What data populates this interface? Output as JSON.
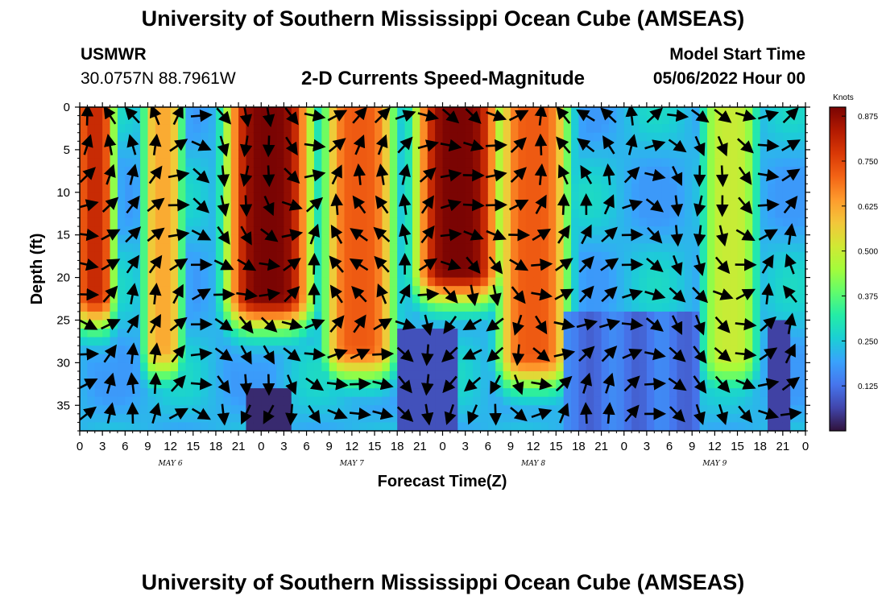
{
  "header": {
    "title": "University of Southern Mississippi Ocean Cube (AMSEAS)",
    "station_id": "USMWR",
    "station_coords": "30.0757N  88.7961W",
    "subtitle": "2-D Currents Speed-Magnitude",
    "start_label": "Model Start Time",
    "start_value": "05/06/2022 Hour 00"
  },
  "footer": {
    "title": "University of Southern Mississippi Ocean Cube (AMSEAS)"
  },
  "chart_data": {
    "type": "heatmap",
    "title": "2-D Currents Speed-Magnitude",
    "xlabel": "Forecast Time(Z)",
    "ylabel": "Depth (ft)",
    "x_tick_labels": [
      "0",
      "3",
      "6",
      "9",
      "12",
      "15",
      "18",
      "21",
      "0",
      "3",
      "6",
      "9",
      "12",
      "15",
      "18",
      "21",
      "0",
      "3",
      "6",
      "9",
      "12",
      "15",
      "18",
      "21",
      "0",
      "3",
      "6",
      "9",
      "12",
      "15",
      "18",
      "21",
      "0"
    ],
    "x_range_hours": [
      0,
      96
    ],
    "day_labels": [
      {
        "label": "MAY 6",
        "hour": 12
      },
      {
        "label": "MAY 7",
        "hour": 36
      },
      {
        "label": "MAY 8",
        "hour": 60
      },
      {
        "label": "MAY 9",
        "hour": 84
      }
    ],
    "y_ticks": [
      0,
      5,
      10,
      15,
      20,
      25,
      30,
      35
    ],
    "y_range_ft": [
      0,
      38
    ],
    "y_inverted": true,
    "colorbar": {
      "title": "Knots",
      "ticks": [
        "0.875",
        "0.750",
        "0.625",
        "0.500",
        "0.375",
        "0.250",
        "0.125"
      ],
      "tick_values": [
        0.875,
        0.75,
        0.625,
        0.5,
        0.375,
        0.25,
        0.125
      ],
      "range": [
        0.0,
        0.9
      ],
      "colormap": [
        "#30123b",
        "#4145ab",
        "#4675ed",
        "#39a2fc",
        "#1bcfd4",
        "#24eca6",
        "#61fc6c",
        "#a4fc3b",
        "#d1e834",
        "#f3c63a",
        "#fe9b2d",
        "#f36315",
        "#d93806",
        "#b11901",
        "#7a0403"
      ]
    },
    "speed_bands": [
      {
        "start_hour": 0,
        "end_hour": 4,
        "max_speed": 0.8,
        "bottom_ft": 22
      },
      {
        "start_hour": 9,
        "end_hour": 13,
        "max_speed": 0.62,
        "bottom_ft": 28
      },
      {
        "start_hour": 20,
        "end_hour": 30,
        "max_speed": 0.9,
        "bottom_ft": 22
      },
      {
        "start_hour": 33,
        "end_hour": 41,
        "max_speed": 0.72,
        "bottom_ft": 28
      },
      {
        "start_hour": 45,
        "end_hour": 55,
        "max_speed": 0.9,
        "bottom_ft": 19
      },
      {
        "start_hour": 56,
        "end_hour": 64,
        "max_speed": 0.72,
        "bottom_ft": 29
      },
      {
        "start_hour": 83,
        "end_hour": 89,
        "max_speed": 0.5,
        "bottom_ft": 29
      }
    ],
    "vector_grid": {
      "hour_step": 3,
      "depth_step_ft": 3.5,
      "arrow_length_hours": 2.6
    }
  }
}
